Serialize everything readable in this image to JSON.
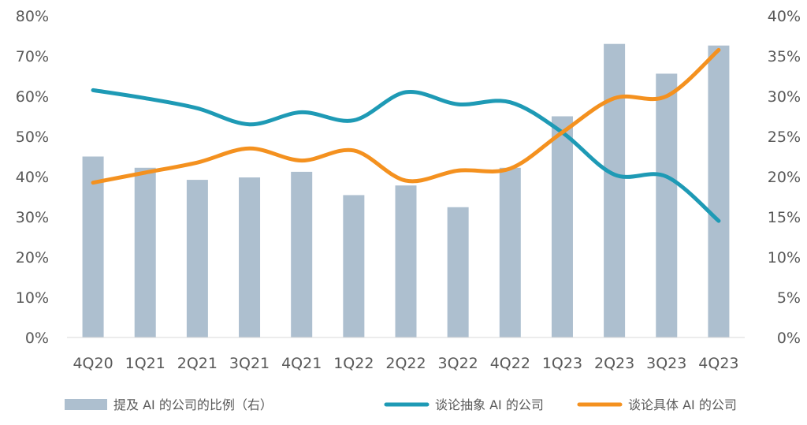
{
  "chart_data": {
    "type": "bar",
    "categories": [
      "4Q20",
      "1Q21",
      "2Q21",
      "3Q21",
      "4Q21",
      "1Q22",
      "2Q22",
      "3Q22",
      "4Q22",
      "1Q23",
      "2Q23",
      "3Q23",
      "4Q23"
    ],
    "series": [
      {
        "name": "提及 AI 的公司的比例（右）",
        "type": "bar",
        "axis": "right",
        "color": "#adbfcf",
        "values": [
          22.5,
          21.1,
          19.6,
          19.9,
          20.6,
          17.7,
          18.9,
          16.2,
          21.1,
          27.5,
          36.5,
          32.8,
          36.3
        ]
      },
      {
        "name": "谈论抽象 AI 的公司",
        "type": "line",
        "axis": "left",
        "color": "#1e9ab5",
        "values": [
          61.5,
          59.5,
          57.0,
          53.0,
          56.0,
          54.0,
          61.0,
          58.0,
          58.5,
          51.0,
          40.5,
          40.0,
          29.0
        ]
      },
      {
        "name": "谈论具体 AI 的公司",
        "type": "line",
        "axis": "left",
        "color": "#f4911f",
        "values": [
          38.5,
          41.0,
          43.5,
          47.0,
          44.0,
          46.5,
          39.0,
          41.5,
          42.0,
          51.0,
          59.5,
          60.0,
          71.5
        ]
      }
    ],
    "left_axis": {
      "ylim": [
        0,
        80
      ],
      "ticks": [
        "0%",
        "10%",
        "20%",
        "30%",
        "40%",
        "50%",
        "60%",
        "70%",
        "80%"
      ]
    },
    "right_axis": {
      "ylim": [
        0,
        40
      ],
      "ticks": [
        "0%",
        "5%",
        "10%",
        "15%",
        "20%",
        "25%",
        "30%",
        "35%",
        "40%"
      ]
    },
    "grid": false,
    "legend_position": "bottom"
  }
}
